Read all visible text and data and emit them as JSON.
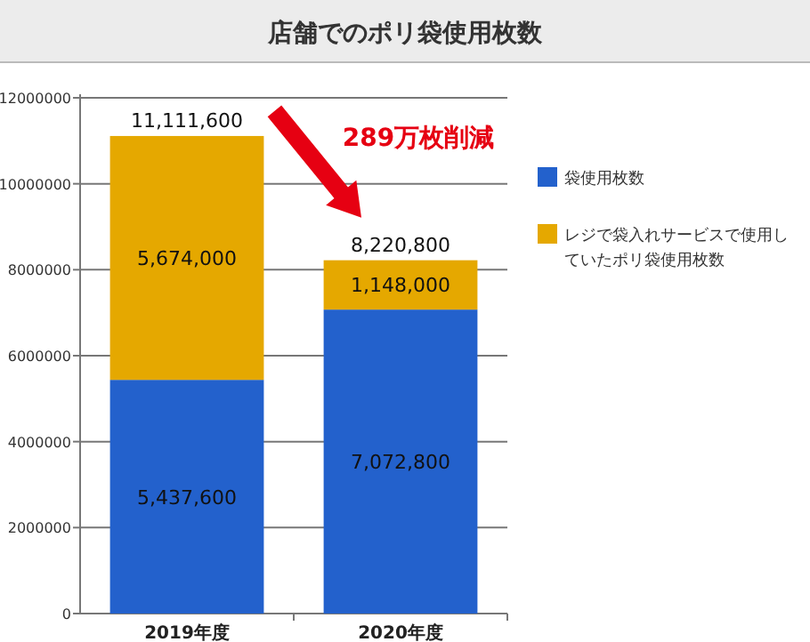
{
  "chart_data": {
    "type": "bar",
    "stacked": true,
    "title": "店舗でのポリ袋使用枚数",
    "categories": [
      "2019年度",
      "2020年度"
    ],
    "series": [
      {
        "name": "袋使用枚数",
        "color": "#2361cc",
        "values": [
          5437600,
          7072800
        ],
        "value_labels": [
          "5,437,600",
          "7,072,800"
        ]
      },
      {
        "name": "レジで袋入れサービスで使用していたポリ袋使用枚数",
        "color": "#e5a800",
        "values": [
          5674000,
          1148000
        ],
        "value_labels": [
          "5,674,000",
          "1,148,000"
        ]
      }
    ],
    "totals": [
      "11,111,600",
      "8,220,800"
    ],
    "annotations": [
      "289万枚削減"
    ],
    "ylim": [
      0,
      12000000
    ],
    "yticks": [
      0,
      2000000,
      4000000,
      6000000,
      8000000,
      10000000,
      12000000
    ],
    "grid": "y",
    "legend": "right"
  }
}
